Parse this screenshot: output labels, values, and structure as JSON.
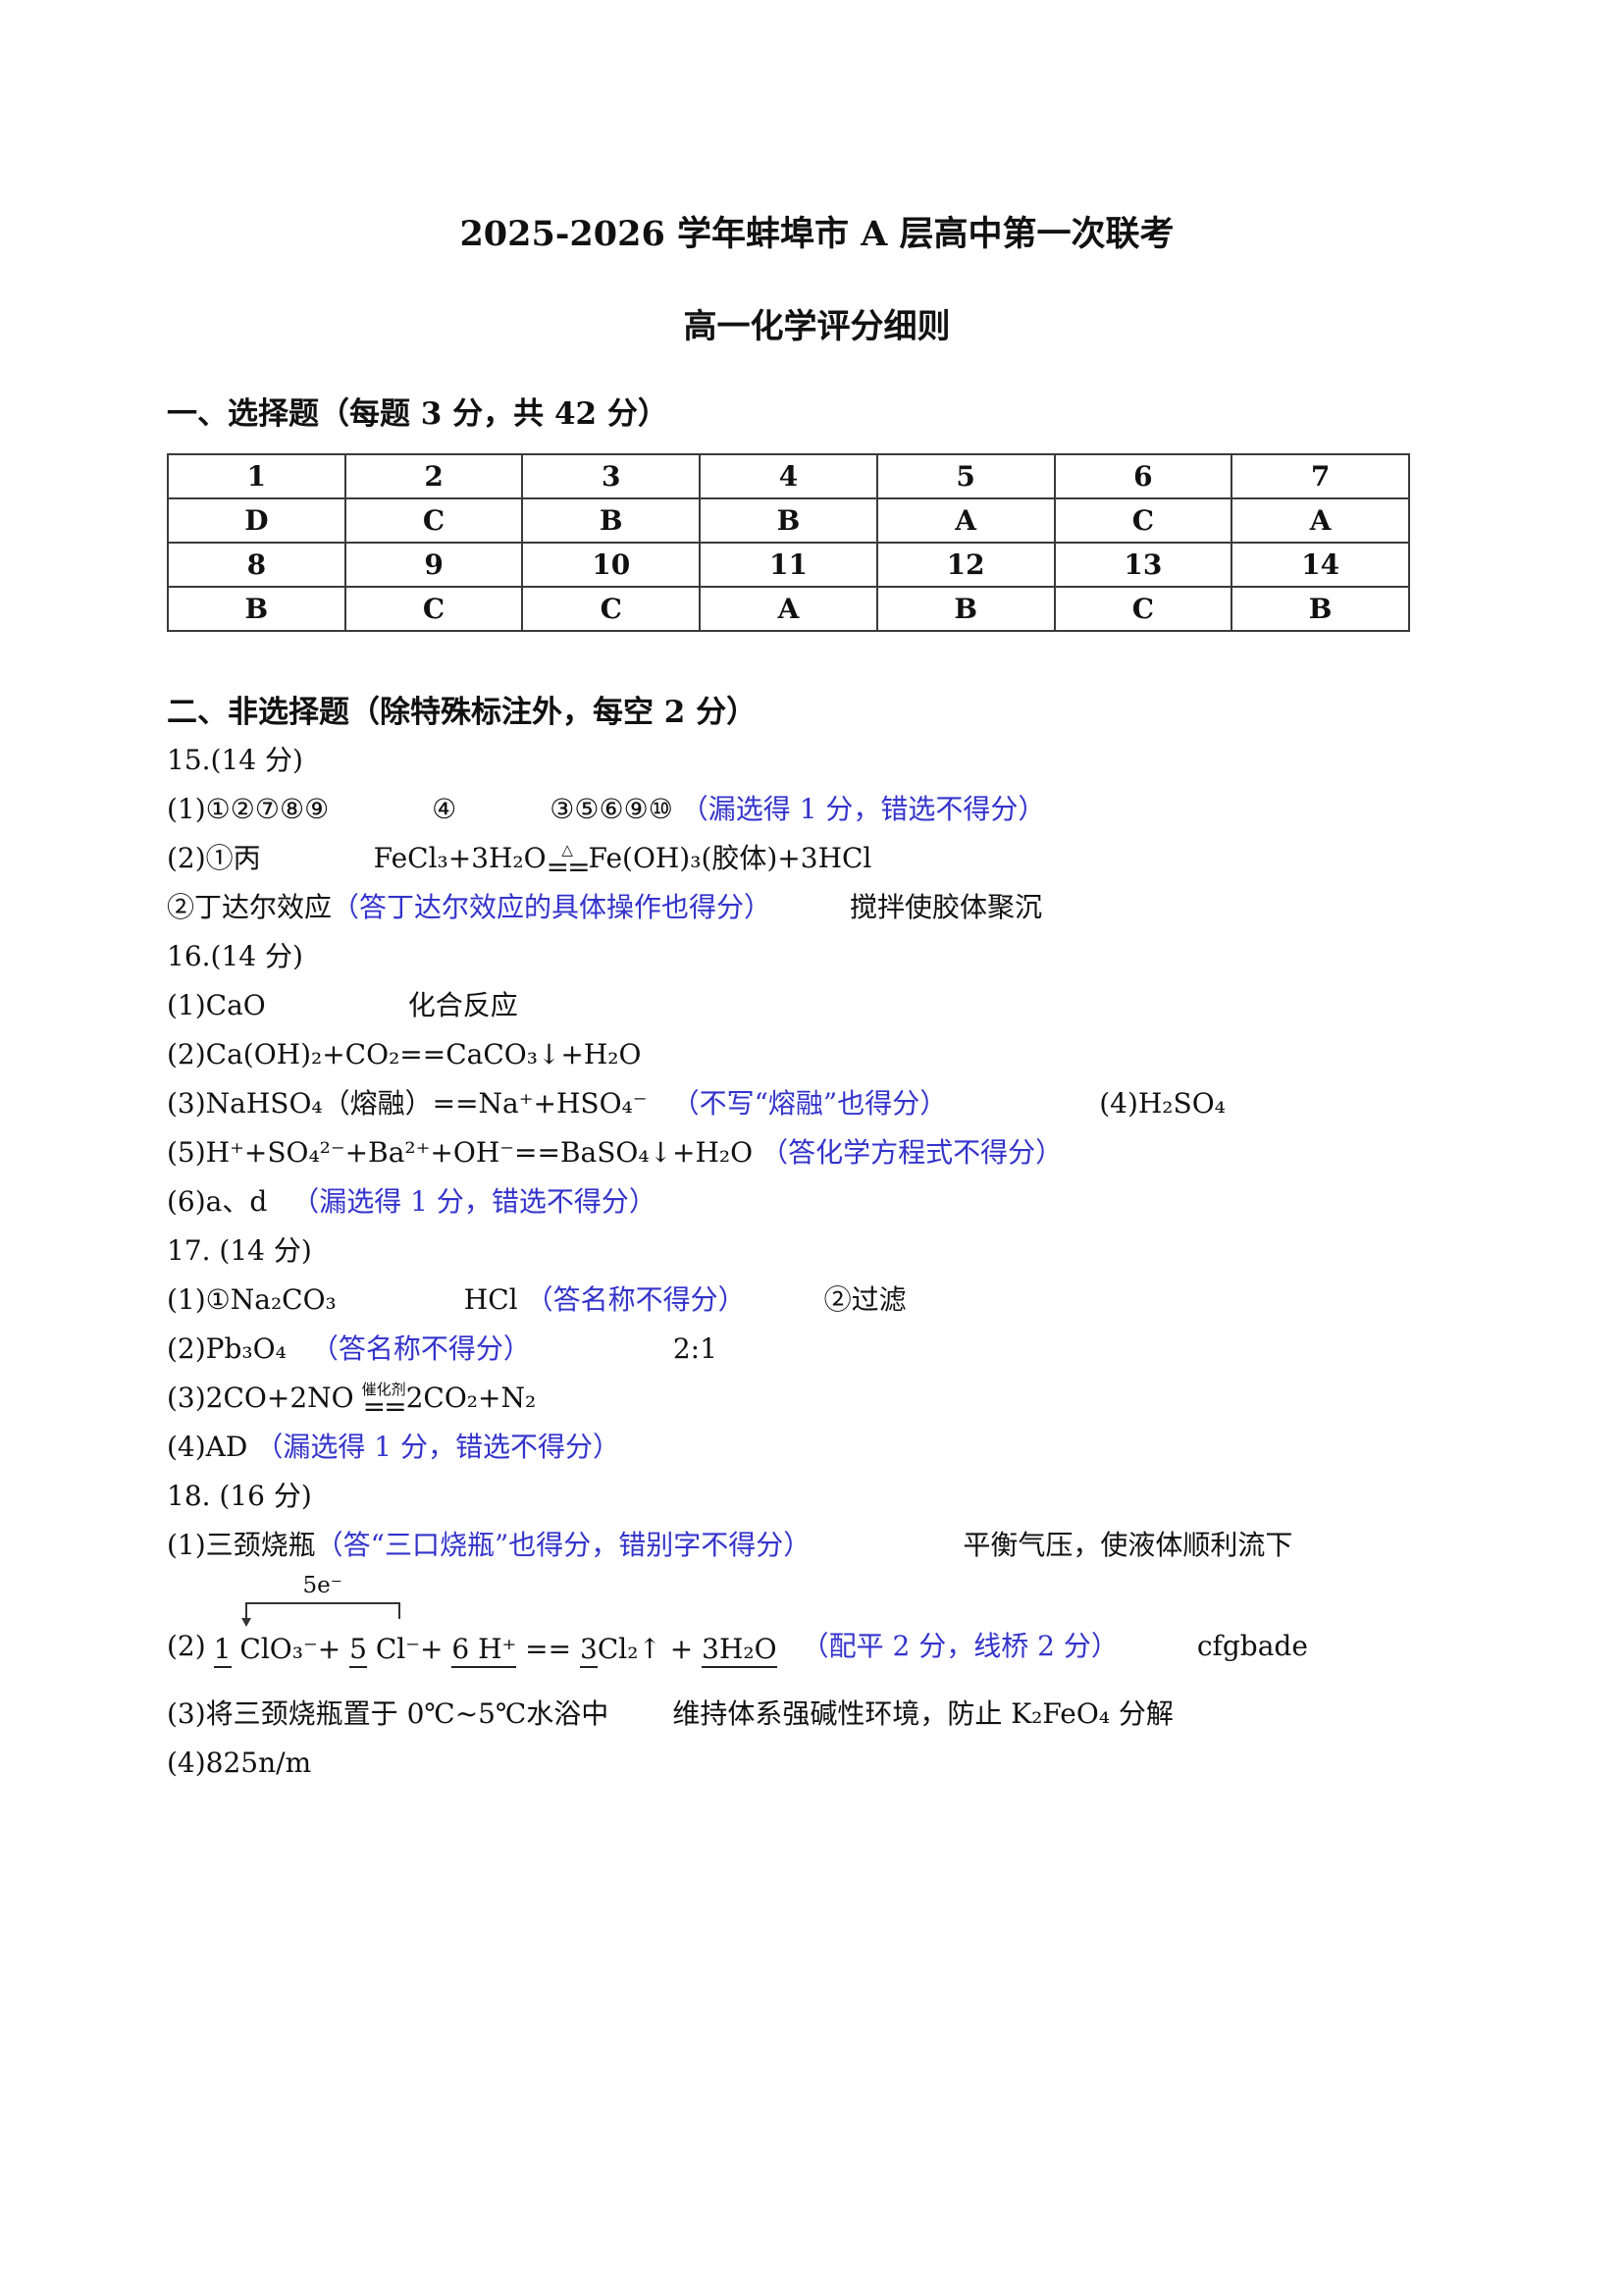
{
  "doc": {
    "title": "2025-2026 学年蚌埠市 A 层高中第一次联考",
    "subtitle": "高一化学评分细则",
    "note_color": "#3333cc"
  },
  "choice_section": {
    "heading": "一、选择题（每题 3 分，共 42 分）",
    "table_rows": [
      [
        "1",
        "2",
        "3",
        "4",
        "5",
        "6",
        "7"
      ],
      [
        "D",
        "C",
        "B",
        "B",
        "A",
        "C",
        "A"
      ],
      [
        "8",
        "9",
        "10",
        "11",
        "12",
        "13",
        "14"
      ],
      [
        "B",
        "C",
        "C",
        "A",
        "B",
        "C",
        "B"
      ]
    ]
  },
  "non_choice": {
    "heading": "二、非选择题（除特殊标注外，每空 2 分）",
    "q15": {
      "label": "15.(14 分)",
      "l1_a": "(1)①②⑦⑧⑨",
      "l1_b": "④",
      "l1_c": "③⑤⑥⑨⑩",
      "l1_note": "（漏选得 1 分，错选不得分）",
      "l2_a": "(2)①丙",
      "l2_lhs": "FeCl₃+3H₂O",
      "l2_cond": "△",
      "l2_eqsign": "==",
      "l2_rhs": "Fe(OH)₃(胶体)+3HCl",
      "l3_a": "②丁达尔效应",
      "l3_note": "（答丁达尔效应的具体操作也得分）",
      "l3_b": "搅拌使胶体聚沉"
    },
    "q16": {
      "label": "16.(14 分)",
      "l1_a": "(1)CaO",
      "l1_b": "化合反应",
      "l2_a": "(2)Ca(OH)₂+CO₂==CaCO₃↓+H₂O",
      "l3_a": "(3)NaHSO₄（熔融）==Na⁺+HSO₄⁻",
      "l3_note": "（不写“熔融”也得分）",
      "l3_b": "(4)H₂SO₄",
      "l4_a": "(5)H⁺+SO₄²⁻+Ba²⁺+OH⁻==BaSO₄↓+H₂O",
      "l4_note": "（答化学方程式不得分）",
      "l5_a": "(6)a、d",
      "l5_note": "（漏选得 1 分，错选不得分）"
    },
    "q17": {
      "label": "17. (14 分)",
      "l1_a": "(1)①Na₂CO₃",
      "l1_b": "HCl",
      "l1_note": "（答名称不得分）",
      "l1_c": "②过滤",
      "l2_a": "(2)Pb₃O₄",
      "l2_note": "（答名称不得分）",
      "l2_b": "2:1",
      "l3_lhs": "(3)2CO+2NO",
      "l3_cond": "催化剂",
      "l3_eqsign": "==",
      "l3_rhs": "2CO₂+N₂",
      "l4_a": "(4)AD",
      "l4_note": "（漏选得 1 分，错选不得分）"
    },
    "q18": {
      "label": "18. (16 分)",
      "l1_a": "(1)三颈烧瓶",
      "l1_note": "（答“三口烧瓶”也得分，错别字不得分）",
      "l1_b": "平衡气压，使液体顺利流下",
      "l2_prefix": "(2)",
      "l2_bridge_label": "5e⁻",
      "l2_segments": [
        {
          "text": "1",
          "underline": true
        },
        {
          "text": " ClO₃⁻+ ",
          "underline": false
        },
        {
          "text": "5",
          "underline": true
        },
        {
          "text": " Cl⁻+ ",
          "underline": false
        },
        {
          "text": "6 H⁺",
          "underline": true
        },
        {
          "text": " == ",
          "underline": false
        },
        {
          "text": "3",
          "underline": true
        },
        {
          "text": "Cl₂↑ + ",
          "underline": false
        },
        {
          "text": "3H₂O",
          "underline": true
        }
      ],
      "l2_note": "（配平 2 分，线桥 2 分）",
      "l2_b": "cfgbade",
      "l3_a": "(3)将三颈烧瓶置于 0℃~5℃水浴中",
      "l3_b": "维持体系强碱性环境，防止 K₂FeO₄ 分解",
      "l4_a": "(4)825n/m"
    }
  }
}
